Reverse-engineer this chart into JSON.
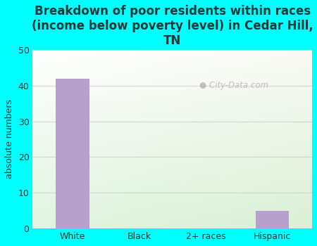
{
  "title": "Breakdown of poor residents within races\n(income below poverty level) in Cedar Hill,\nTN",
  "categories": [
    "White",
    "Black",
    "2+ races",
    "Hispanic"
  ],
  "values": [
    42,
    0,
    0,
    5
  ],
  "bar_color": "#b8a0cc",
  "ylabel": "absolute numbers",
  "ylim": [
    0,
    50
  ],
  "yticks": [
    0,
    10,
    20,
    30,
    40,
    50
  ],
  "background_color": "#00ffff",
  "plot_bg_topleft": "#d8ecd8",
  "plot_bg_topright": "#d8ecd8",
  "plot_bg_bottomleft": "#ffffff",
  "plot_bg_bottomright": "#e8f5e8",
  "title_fontsize": 12,
  "title_color": "#1a3a3a",
  "axis_label_fontsize": 9,
  "tick_fontsize": 9,
  "watermark": "City-Data.com",
  "grid_color": "#cccccc"
}
